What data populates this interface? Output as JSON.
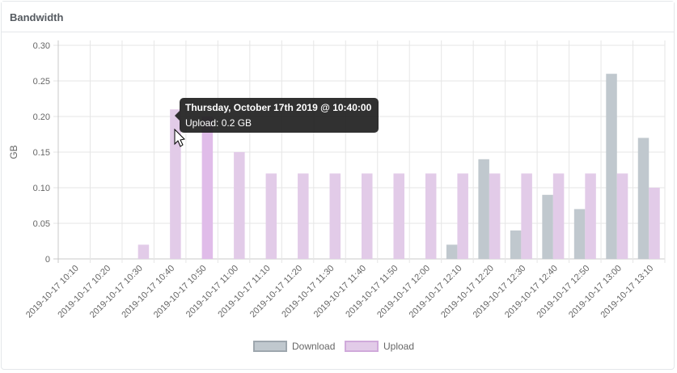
{
  "card": {
    "title": "Bandwidth"
  },
  "tooltip": {
    "title": "Thursday, October 17th 2019 @ 10:40:00",
    "body": "Upload: 0.2 GB"
  },
  "chart_data": {
    "type": "bar",
    "title": "",
    "xlabel": "",
    "ylabel": "GB",
    "ylim": [
      0,
      0.3
    ],
    "yticks": [
      "0",
      "0.05",
      "0.10",
      "0.15",
      "0.20",
      "0.25",
      "0.30"
    ],
    "grid": true,
    "legend_position": "bottom",
    "categories": [
      "2019-10-17 10:10",
      "2019-10-17 10:20",
      "2019-10-17 10:30",
      "2019-10-17 10:40",
      "2019-10-17 10:50",
      "2019-10-17 11:00",
      "2019-10-17 11:10",
      "2019-10-17 11:20",
      "2019-10-17 11:30",
      "2019-10-17 11:40",
      "2019-10-17 11:50",
      "2019-10-17 12:00",
      "2019-10-17 12:10",
      "2019-10-17 12:20",
      "2019-10-17 12:30",
      "2019-10-17 12:40",
      "2019-10-17 12:50",
      "2019-10-17 13:00",
      "2019-10-17 13:10"
    ],
    "series": [
      {
        "name": "Download",
        "color": "#c0c8ce",
        "border": "#9ea7ae",
        "values": [
          0,
          0,
          0,
          0,
          0,
          0,
          0,
          0,
          0,
          0,
          0,
          0,
          0.02,
          0.14,
          0.04,
          0.09,
          0.07,
          0.26,
          0.17
        ]
      },
      {
        "name": "Upload",
        "color": "#e2cbe8",
        "border": "#d0aadb",
        "values": [
          0,
          0,
          0.02,
          0.21,
          0.2,
          0.15,
          0.12,
          0.12,
          0.12,
          0.12,
          0.12,
          0.12,
          0.12,
          0.12,
          0.12,
          0.12,
          0.12,
          0.12,
          0.1
        ]
      }
    ],
    "highlight": {
      "series": 1,
      "index": 4,
      "color": "#e0bce9"
    }
  }
}
